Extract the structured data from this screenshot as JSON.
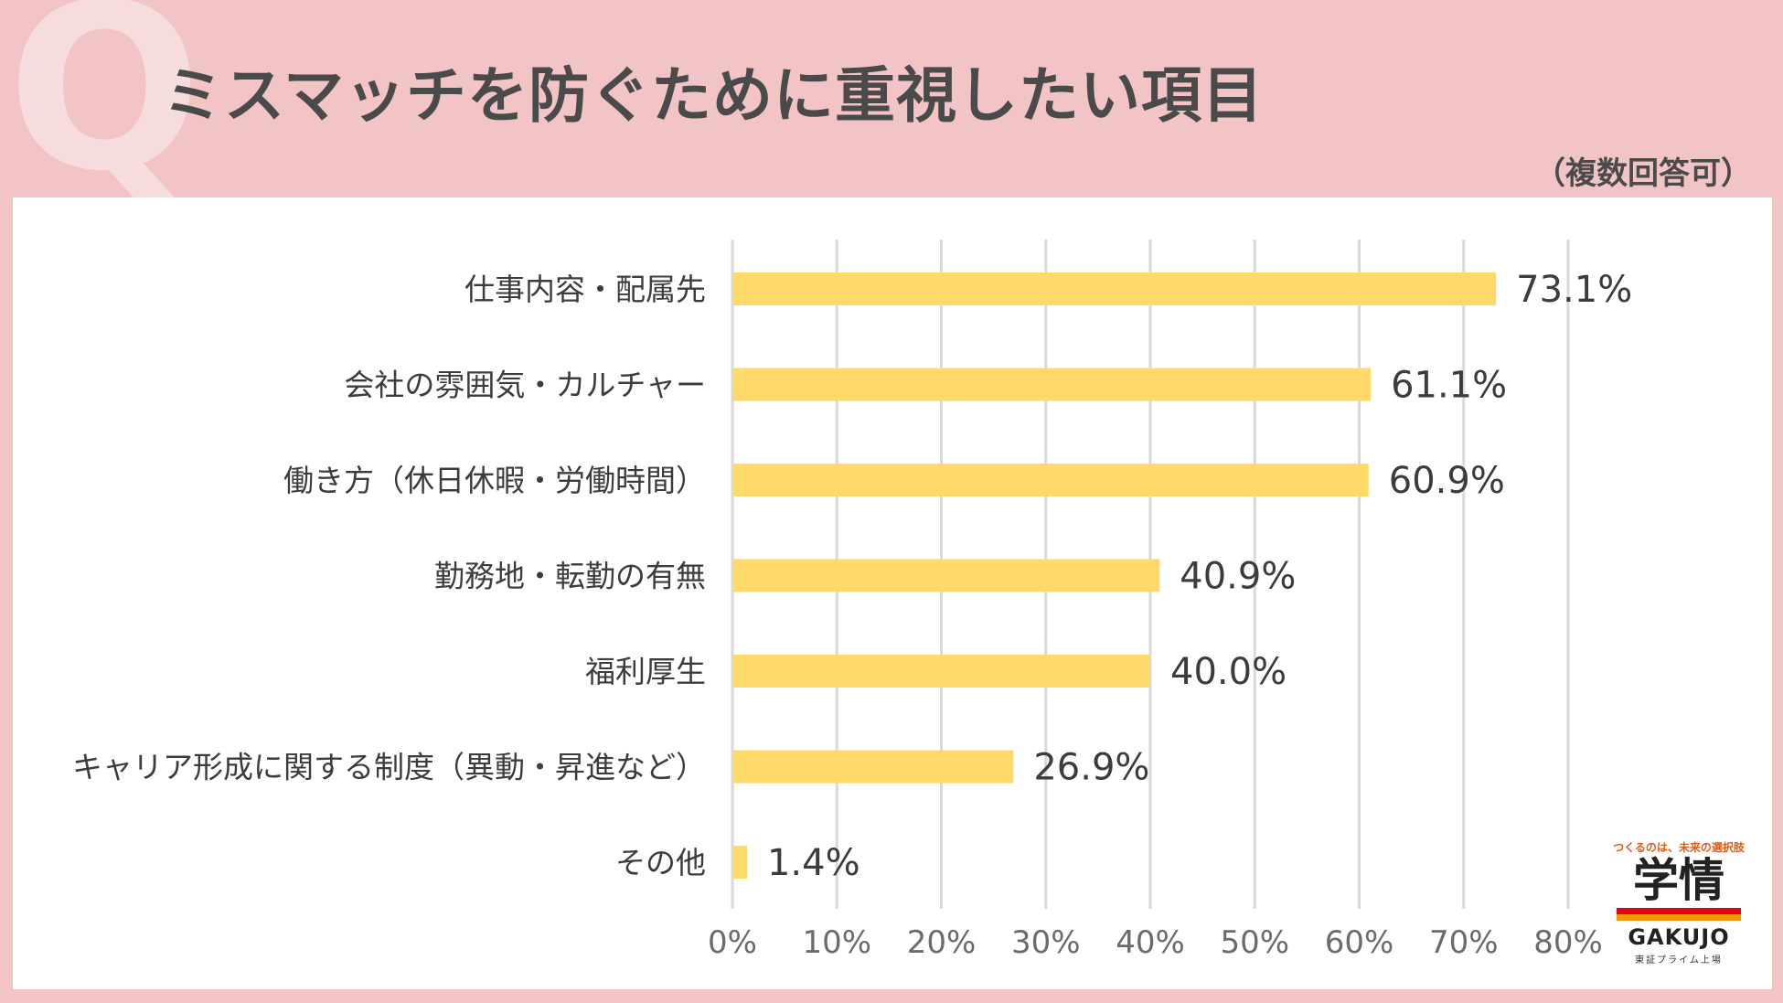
{
  "header": {
    "q_mark": "Q",
    "title": "ミスマッチを防ぐために重視したい項目",
    "note": "（複数回答可）"
  },
  "colors": {
    "background": "#f2c4c6",
    "bar": "#ffd96a",
    "grid": "#d9d9d9",
    "title_text": "#4a4a4a"
  },
  "chart_data": {
    "type": "bar",
    "orientation": "horizontal",
    "categories": [
      "仕事内容・配属先",
      "会社の雰囲気・カルチャー",
      "働き方（休日休暇・労働時間）",
      "勤務地・転勤の有無",
      "福利厚生",
      "キャリア形成に関する制度（異動・昇進など）",
      "その他"
    ],
    "values": [
      73.1,
      61.1,
      60.9,
      40.9,
      40.0,
      26.9,
      1.4
    ],
    "value_labels": [
      "73.1%",
      "61.1%",
      "60.9%",
      "40.9%",
      "40.0%",
      "26.9%",
      "1.4%"
    ],
    "xlim": [
      0,
      80
    ],
    "x_ticks": [
      "0%",
      "10%",
      "20%",
      "30%",
      "40%",
      "50%",
      "60%",
      "70%",
      "80%"
    ],
    "grid": true
  },
  "logo": {
    "tagline": "つくるのは、未来の選択肢",
    "kanji": "学情",
    "english": "GAKUJO",
    "subtitle": "東証プライム上場"
  }
}
